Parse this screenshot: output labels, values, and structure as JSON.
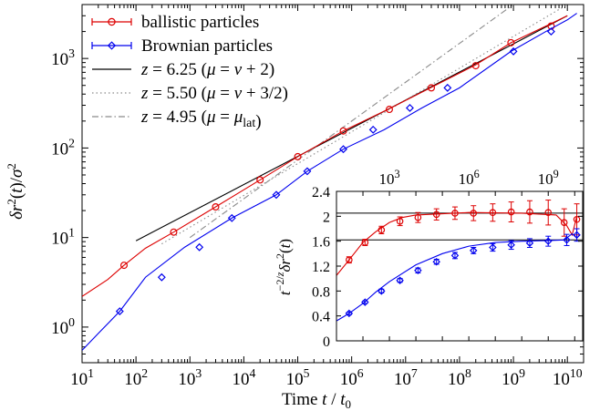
{
  "chart_data": [
    {
      "type": "line",
      "title": "",
      "xlabel": "Time t / t0",
      "ylabel": "δr²(t) / σ²",
      "x_scale": "log",
      "y_scale": "log",
      "xlim": [
        10,
        20000000000
      ],
      "ylim": [
        0.4,
        4000
      ],
      "grid": false,
      "legend": "top-left",
      "x_ticks": [
        {
          "v": 10,
          "base": "10",
          "exp": "1"
        },
        {
          "v": 100,
          "base": "10",
          "exp": "2"
        },
        {
          "v": 1000,
          "base": "10",
          "exp": "3"
        },
        {
          "v": 10000,
          "base": "10",
          "exp": "4"
        },
        {
          "v": 100000,
          "base": "10",
          "exp": "5"
        },
        {
          "v": 1000000,
          "base": "10",
          "exp": "6"
        },
        {
          "v": 10000000,
          "base": "10",
          "exp": "7"
        },
        {
          "v": 100000000,
          "base": "10",
          "exp": "8"
        },
        {
          "v": 1000000000,
          "base": "10",
          "exp": "9"
        },
        {
          "v": 10000000000,
          "base": "10",
          "exp": "10"
        }
      ],
      "y_ticks": [
        {
          "v": 1,
          "base": "10",
          "exp": "0"
        },
        {
          "v": 10,
          "base": "10",
          "exp": "1"
        },
        {
          "v": 100,
          "base": "10",
          "exp": "2"
        },
        {
          "v": 1000,
          "base": "10",
          "exp": "3"
        }
      ],
      "series": [
        {
          "name": "ballistic particles",
          "color": "#dd0000",
          "marker": "circle",
          "curve": {
            "x": [
              10,
              30,
              60,
              150,
              500,
              3000,
              20000,
              100000,
              700000,
              5000000,
              30000000,
              200000000,
              900000000,
              4000000000,
              10000000000
            ],
            "y": [
              2.2,
              3.4,
              4.9,
              7.6,
              11.5,
              22,
              44,
              80,
              155,
              275,
              475,
              850,
              1500,
              2300,
              3000
            ]
          },
          "points": [
            {
              "x": 60,
              "y": 4.9
            },
            {
              "x": 500,
              "y": 11.5
            },
            {
              "x": 3000,
              "y": 22
            },
            {
              "x": 20000,
              "y": 44
            },
            {
              "x": 100000,
              "y": 80
            },
            {
              "x": 700000,
              "y": 155
            },
            {
              "x": 5000000,
              "y": 270
            },
            {
              "x": 30000000,
              "y": 470
            },
            {
              "x": 200000000,
              "y": 830
            },
            {
              "x": 900000000,
              "y": 1500
            },
            {
              "x": 5000000000,
              "y": 2300
            }
          ]
        },
        {
          "name": "Brownian particles",
          "color": "#0000ee",
          "marker": "diamond",
          "curve": {
            "x": [
              10,
              20,
              50,
              150,
              800,
              6000,
              40000,
              150000,
              700000,
              4000000,
              20000000,
              100000000,
              900000000,
              4000000000,
              10000000000,
              15000000000
            ],
            "y": [
              0.55,
              0.85,
              1.5,
              3.6,
              7.8,
              16.5,
              30,
              55,
              97,
              160,
              280,
              470,
              1200,
              2000,
              2700,
              3200
            ]
          },
          "points": [
            {
              "x": 50,
              "y": 1.5
            },
            {
              "x": 300,
              "y": 3.6
            },
            {
              "x": 1500,
              "y": 7.8
            },
            {
              "x": 6000,
              "y": 16.5
            },
            {
              "x": 40000,
              "y": 30
            },
            {
              "x": 150000,
              "y": 55
            },
            {
              "x": 700000,
              "y": 97
            },
            {
              "x": 2500000,
              "y": 160
            },
            {
              "x": 12000000,
              "y": 280
            },
            {
              "x": 60000000,
              "y": 470
            },
            {
              "x": 1000000000,
              "y": 1200
            },
            {
              "x": 5000000000,
              "y": 2000
            }
          ]
        },
        {
          "name": "z = 6.25 (μ = ν + 2)",
          "color": "#000000",
          "dash": "solid",
          "curve": {
            "x": [
              100,
              10000000000
            ],
            "y": [
              9.2,
              3000
            ]
          }
        },
        {
          "name": "z = 5.50 (μ = ν + 3/2)",
          "color": "#8a8a8a",
          "dash": "dotted",
          "curve": {
            "x": [
              300,
              10000000000
            ],
            "y": [
              8.5,
              4000
            ]
          }
        },
        {
          "name": "z = 4.95 (μ = μlat)",
          "color": "#8a8a8a",
          "dash": "dashdot",
          "curve": {
            "x": [
              1000,
              1000000000
            ],
            "y": [
              10,
              4000
            ]
          }
        }
      ]
    },
    {
      "type": "line",
      "title": "",
      "xlabel": "",
      "ylabel": "t^(−2/z) δr²(t)",
      "x_scale": "log",
      "y_scale": "linear",
      "xlim": [
        10,
        20000000000
      ],
      "ylim": [
        0,
        2.4
      ],
      "grid": false,
      "legend": "none",
      "x_ticks": [
        {
          "v": 1000,
          "base": "10",
          "exp": "3"
        },
        {
          "v": 1000000,
          "base": "10",
          "exp": "6"
        },
        {
          "v": 1000000000,
          "base": "10",
          "exp": "9"
        }
      ],
      "y_ticks": [
        {
          "v": 0,
          "label": "0"
        },
        {
          "v": 0.4,
          "label": "0.4"
        },
        {
          "v": 0.8,
          "label": "0.8"
        },
        {
          "v": 1.2,
          "label": "1.2"
        },
        {
          "v": 1.6,
          "label": "1.6"
        },
        {
          "v": 2,
          "label": "2"
        },
        {
          "v": 2.4,
          "label": "2.4"
        }
      ],
      "hlines": [
        {
          "y": 2.05,
          "color": "#000000"
        },
        {
          "y": 1.62,
          "color": "#000000"
        }
      ],
      "series": [
        {
          "name": "ballistic particles",
          "color": "#dd0000",
          "marker": "circle",
          "curve": {
            "x": [
              10,
              30,
              100,
              300,
              1000,
              3000,
              10000,
              100000,
              1000000,
              100000000,
              2000000000,
              5000000000,
              8000000000,
              12000000000
            ],
            "y": [
              1.05,
              1.3,
              1.58,
              1.75,
              1.9,
              1.98,
              2.02,
              2.04,
              2.06,
              2.05,
              2.02,
              1.85,
              1.7,
              2.0
            ]
          },
          "points": [
            {
              "x": 30,
              "y": 1.3,
              "err": 0.05
            },
            {
              "x": 120,
              "y": 1.58,
              "err": 0.05
            },
            {
              "x": 500,
              "y": 1.78,
              "err": 0.06
            },
            {
              "x": 2500,
              "y": 1.92,
              "err": 0.07
            },
            {
              "x": 12000,
              "y": 1.98,
              "err": 0.08
            },
            {
              "x": 60000,
              "y": 2.03,
              "err": 0.09
            },
            {
              "x": 300000,
              "y": 2.05,
              "err": 0.1
            },
            {
              "x": 1500000,
              "y": 2.05,
              "err": 0.12
            },
            {
              "x": 8000000,
              "y": 2.06,
              "err": 0.14
            },
            {
              "x": 40000000,
              "y": 2.07,
              "err": 0.16
            },
            {
              "x": 200000000,
              "y": 2.07,
              "err": 0.18
            },
            {
              "x": 1000000000,
              "y": 2.06,
              "err": 0.2
            },
            {
              "x": 4000000000,
              "y": 1.9,
              "err": 0.22
            },
            {
              "x": 12000000000,
              "y": 1.95,
              "err": 0.25
            }
          ]
        },
        {
          "name": "Brownian particles",
          "color": "#0000ee",
          "marker": "diamond",
          "curve": {
            "x": [
              10,
              30,
              100,
              300,
              1000,
              10000,
              100000,
              1000000,
              10000000,
              100000000,
              1000000000,
              4000000000,
              8000000000,
              12000000000
            ],
            "y": [
              0.32,
              0.44,
              0.6,
              0.78,
              0.95,
              1.22,
              1.4,
              1.52,
              1.58,
              1.6,
              1.61,
              1.62,
              1.72,
              1.65
            ]
          },
          "points": [
            {
              "x": 30,
              "y": 0.44,
              "err": 0.02
            },
            {
              "x": 120,
              "y": 0.62,
              "err": 0.02
            },
            {
              "x": 500,
              "y": 0.8,
              "err": 0.03
            },
            {
              "x": 2500,
              "y": 0.97,
              "err": 0.03
            },
            {
              "x": 12000,
              "y": 1.13,
              "err": 0.04
            },
            {
              "x": 60000,
              "y": 1.27,
              "err": 0.04
            },
            {
              "x": 300000,
              "y": 1.37,
              "err": 0.05
            },
            {
              "x": 1500000,
              "y": 1.45,
              "err": 0.05
            },
            {
              "x": 8000000,
              "y": 1.5,
              "err": 0.06
            },
            {
              "x": 40000000,
              "y": 1.54,
              "err": 0.07
            },
            {
              "x": 200000000,
              "y": 1.57,
              "err": 0.07
            },
            {
              "x": 1000000000,
              "y": 1.6,
              "err": 0.08
            },
            {
              "x": 5000000000,
              "y": 1.62,
              "err": 0.09
            },
            {
              "x": 12000000000,
              "y": 1.7,
              "err": 0.1
            }
          ]
        }
      ]
    }
  ]
}
